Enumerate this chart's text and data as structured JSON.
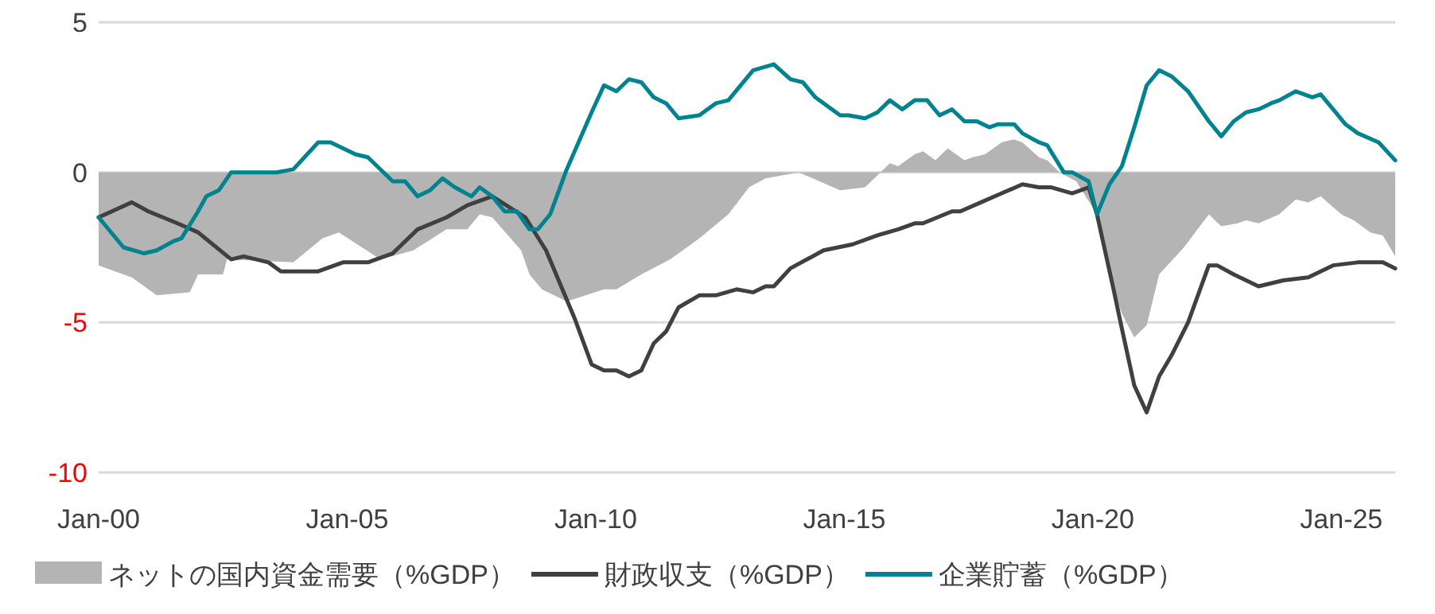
{
  "chart_data": {
    "type": "line",
    "xlim": [
      "2000-01",
      "2026-02"
    ],
    "ylim": [
      -10,
      5
    ],
    "yticks": [
      -10,
      -5,
      0,
      5
    ],
    "xticks": [
      {
        "value": "2000-01",
        "label": "Jan-00"
      },
      {
        "value": "2005-01",
        "label": "Jan-05"
      },
      {
        "value": "2010-01",
        "label": "Jan-10"
      },
      {
        "value": "2015-01",
        "label": "Jan-15"
      },
      {
        "value": "2020-01",
        "label": "Jan-20"
      },
      {
        "value": "2025-01",
        "label": "Jan-25"
      }
    ],
    "grid": "y",
    "legend": "bottom",
    "marker": "none",
    "line_style": "solid",
    "series": [
      {
        "name": "ネットの国内資金需要（%GDP）",
        "type": "area",
        "color": "#b4b4b4",
        "x": [
          "2000-01",
          "2000-09",
          "2001-03",
          "2001-11",
          "2002-01",
          "2002-07",
          "2002-08",
          "2003-12",
          "2004-07",
          "2004-11",
          "2005-09",
          "2006-05",
          "2007-01",
          "2007-06",
          "2007-09",
          "2007-12",
          "2008-07",
          "2008-09",
          "2008-12",
          "2009-06",
          "2010-03",
          "2010-06",
          "2010-12",
          "2011-07",
          "2012-02",
          "2012-09",
          "2013-02",
          "2013-06",
          "2014-02",
          "2014-12",
          "2015-06",
          "2015-12",
          "2016-02",
          "2016-06",
          "2016-08",
          "2016-11",
          "2017-02",
          "2017-06",
          "2017-08",
          "2017-11",
          "2018-03",
          "2018-06",
          "2018-08",
          "2018-12",
          "2019-02",
          "2019-05",
          "2019-09",
          "2020-02",
          "2020-05",
          "2020-08",
          "2020-11",
          "2021-02",
          "2021-05",
          "2021-11",
          "2022-05",
          "2022-08",
          "2022-12",
          "2023-02",
          "2023-05",
          "2023-10",
          "2024-02",
          "2024-05",
          "2024-08",
          "2025-01",
          "2025-04",
          "2025-08",
          "2025-11",
          "2026-02"
        ],
        "values": [
          -3.1,
          -3.5,
          -4.1,
          -4.0,
          -3.4,
          -3.4,
          -2.9,
          -3.0,
          -2.2,
          -2.0,
          -2.9,
          -2.6,
          -1.9,
          -1.9,
          -1.4,
          -1.5,
          -2.6,
          -3.4,
          -3.9,
          -4.3,
          -3.9,
          -3.9,
          -3.4,
          -2.9,
          -2.2,
          -1.4,
          -0.5,
          -0.2,
          0.0,
          -0.6,
          -0.5,
          0.3,
          0.2,
          0.6,
          0.7,
          0.4,
          0.8,
          0.4,
          0.5,
          0.6,
          1.0,
          1.1,
          1.0,
          0.5,
          0.4,
          0.0,
          -0.3,
          -1.4,
          -3.5,
          -4.7,
          -5.5,
          -5.1,
          -3.4,
          -2.5,
          -1.4,
          -1.8,
          -1.7,
          -1.6,
          -1.7,
          -1.4,
          -0.9,
          -1.0,
          -0.8,
          -1.4,
          -1.6,
          -2.0,
          -2.1,
          -2.8
        ]
      },
      {
        "name": "財政収支（%GDP）",
        "type": "line",
        "color": "#404040",
        "x": [
          "2000-01",
          "2000-09",
          "2001-01",
          "2001-08",
          "2002-01",
          "2002-09",
          "2002-12",
          "2003-06",
          "2003-09",
          "2004-06",
          "2004-12",
          "2005-06",
          "2005-12",
          "2006-06",
          "2007-01",
          "2007-06",
          "2007-12",
          "2008-08",
          "2009-01",
          "2009-08",
          "2009-12",
          "2010-03",
          "2010-06",
          "2010-09",
          "2010-12",
          "2011-03",
          "2011-06",
          "2011-09",
          "2012-02",
          "2012-06",
          "2012-11",
          "2013-03",
          "2013-06",
          "2013-08",
          "2013-12",
          "2014-08",
          "2015-03",
          "2015-09",
          "2016-02",
          "2016-06",
          "2016-08",
          "2017-03",
          "2017-05",
          "2017-10",
          "2018-03",
          "2018-08",
          "2018-12",
          "2019-03",
          "2019-08",
          "2019-12",
          "2020-02",
          "2020-06",
          "2020-08",
          "2020-11",
          "2021-02",
          "2021-05",
          "2021-08",
          "2021-12",
          "2022-05",
          "2022-07",
          "2022-11",
          "2023-05",
          "2023-11",
          "2024-05",
          "2024-11",
          "2025-05",
          "2025-11",
          "2026-02"
        ],
        "values": [
          -1.5,
          -1.0,
          -1.3,
          -1.7,
          -2.0,
          -2.9,
          -2.8,
          -3.0,
          -3.3,
          -3.3,
          -3.0,
          -3.0,
          -2.7,
          -1.9,
          -1.5,
          -1.1,
          -0.8,
          -1.5,
          -2.6,
          -4.9,
          -6.4,
          -6.6,
          -6.6,
          -6.8,
          -6.6,
          -5.7,
          -5.3,
          -4.5,
          -4.1,
          -4.1,
          -3.9,
          -4.0,
          -3.8,
          -3.8,
          -3.2,
          -2.6,
          -2.4,
          -2.1,
          -1.9,
          -1.7,
          -1.7,
          -1.3,
          -1.3,
          -1.0,
          -0.7,
          -0.4,
          -0.5,
          -0.5,
          -0.7,
          -0.5,
          -1.4,
          -3.9,
          -5.2,
          -7.1,
          -8.0,
          -6.8,
          -6.1,
          -5.0,
          -3.1,
          -3.1,
          -3.4,
          -3.8,
          -3.6,
          -3.5,
          -3.1,
          -3.0,
          -3.0,
          -3.2
        ]
      },
      {
        "name": "企業貯蓄（%GDP）",
        "type": "line",
        "color": "#00838f",
        "x": [
          "2000-01",
          "2000-07",
          "2000-12",
          "2001-03",
          "2001-07",
          "2001-09",
          "2002-01",
          "2002-03",
          "2002-06",
          "2002-09",
          "2003-08",
          "2003-12",
          "2004-06",
          "2004-09",
          "2005-03",
          "2005-06",
          "2005-12",
          "2006-03",
          "2006-06",
          "2006-09",
          "2006-12",
          "2007-03",
          "2007-07",
          "2007-09",
          "2007-12",
          "2008-03",
          "2008-06",
          "2008-09",
          "2008-11",
          "2009-02",
          "2009-06",
          "2009-12",
          "2010-03",
          "2010-06",
          "2010-09",
          "2010-12",
          "2011-03",
          "2011-06",
          "2011-09",
          "2012-02",
          "2012-06",
          "2012-09",
          "2013-03",
          "2013-08",
          "2013-12",
          "2014-03",
          "2014-06",
          "2014-12",
          "2015-02",
          "2015-06",
          "2015-09",
          "2015-12",
          "2016-03",
          "2016-06",
          "2016-09",
          "2016-12",
          "2017-03",
          "2017-06",
          "2017-09",
          "2017-12",
          "2018-02",
          "2018-06",
          "2018-08",
          "2018-12",
          "2019-02",
          "2019-06",
          "2019-08",
          "2019-12",
          "2020-02",
          "2020-05",
          "2020-08",
          "2020-11",
          "2021-02",
          "2021-05",
          "2021-08",
          "2021-12",
          "2022-05",
          "2022-08",
          "2022-11",
          "2023-02",
          "2023-05",
          "2023-08",
          "2023-10",
          "2024-02",
          "2024-06",
          "2024-08",
          "2024-11",
          "2025-02",
          "2025-05",
          "2025-10",
          "2026-02"
        ],
        "values": [
          -1.5,
          -2.5,
          -2.7,
          -2.6,
          -2.3,
          -2.2,
          -1.3,
          -0.8,
          -0.6,
          0.0,
          0.0,
          0.1,
          1.0,
          1.0,
          0.6,
          0.5,
          -0.3,
          -0.3,
          -0.8,
          -0.6,
          -0.2,
          -0.5,
          -0.8,
          -0.5,
          -0.8,
          -1.3,
          -1.3,
          -1.9,
          -1.9,
          -1.4,
          0.1,
          2.0,
          2.9,
          2.7,
          3.1,
          3.0,
          2.5,
          2.3,
          1.8,
          1.9,
          2.3,
          2.4,
          3.4,
          3.6,
          3.1,
          3.0,
          2.5,
          1.9,
          1.9,
          1.8,
          2.0,
          2.4,
          2.1,
          2.4,
          2.4,
          1.9,
          2.1,
          1.7,
          1.7,
          1.5,
          1.6,
          1.6,
          1.3,
          1.0,
          0.9,
          0.0,
          0.0,
          -0.3,
          -1.4,
          -0.4,
          0.2,
          1.5,
          2.9,
          3.4,
          3.2,
          2.7,
          1.7,
          1.2,
          1.7,
          2.0,
          2.1,
          2.3,
          2.4,
          2.7,
          2.5,
          2.6,
          2.1,
          1.6,
          1.3,
          1.0,
          0.4
        ]
      }
    ]
  }
}
